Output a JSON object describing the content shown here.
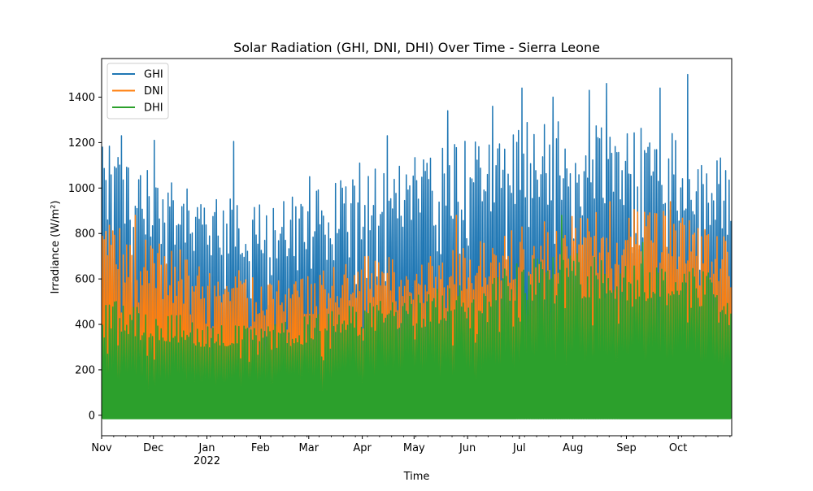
{
  "chart_data": {
    "type": "line",
    "title": "Solar Radiation (GHI, DNI, DHI) Over Time - Sierra Leone",
    "xlabel": "Time",
    "ylabel": "Irradiance (W/m²)",
    "x_range": [
      "2021-11-01",
      "2022-10-31"
    ],
    "ylim": [
      -90,
      1570
    ],
    "yticks": [
      0,
      200,
      400,
      600,
      800,
      1000,
      1200,
      1400
    ],
    "xticks": [
      {
        "date": "2021-11-01",
        "label": "Nov",
        "sublabel": ""
      },
      {
        "date": "2021-12-01",
        "label": "Dec",
        "sublabel": ""
      },
      {
        "date": "2022-01-01",
        "label": "Jan",
        "sublabel": "2022"
      },
      {
        "date": "2022-02-01",
        "label": "Feb",
        "sublabel": ""
      },
      {
        "date": "2022-03-01",
        "label": "Mar",
        "sublabel": ""
      },
      {
        "date": "2022-04-01",
        "label": "Apr",
        "sublabel": ""
      },
      {
        "date": "2022-05-01",
        "label": "May",
        "sublabel": ""
      },
      {
        "date": "2022-06-01",
        "label": "Jun",
        "sublabel": ""
      },
      {
        "date": "2022-07-01",
        "label": "Jul",
        "sublabel": ""
      },
      {
        "date": "2022-08-01",
        "label": "Aug",
        "sublabel": ""
      },
      {
        "date": "2022-09-01",
        "label": "Sep",
        "sublabel": ""
      },
      {
        "date": "2022-10-01",
        "label": "Oct",
        "sublabel": ""
      }
    ],
    "grid": false,
    "legend_position": "upper-left",
    "series": [
      {
        "name": "GHI",
        "color": "#1f77b4",
        "min": 0,
        "typical_daily_max": [
          {
            "date": "2021-11-01",
            "value": 1100
          },
          {
            "date": "2021-12-01",
            "value": 980
          },
          {
            "date": "2022-01-01",
            "value": 880
          },
          {
            "date": "2022-02-01",
            "value": 860
          },
          {
            "date": "2022-03-01",
            "value": 900
          },
          {
            "date": "2022-04-01",
            "value": 980
          },
          {
            "date": "2022-05-01",
            "value": 1050
          },
          {
            "date": "2022-06-01",
            "value": 1100
          },
          {
            "date": "2022-07-01",
            "value": 1180
          },
          {
            "date": "2022-08-01",
            "value": 1200
          },
          {
            "date": "2022-09-01",
            "value": 1180
          },
          {
            "date": "2022-10-01",
            "value": 1150
          },
          {
            "date": "2022-10-31",
            "value": 1000
          }
        ],
        "peaks": [
          {
            "date": "2021-11-01",
            "value": 1180
          },
          {
            "date": "2021-11-12",
            "value": 1230
          },
          {
            "date": "2021-12-01",
            "value": 1210
          },
          {
            "date": "2022-01-16",
            "value": 1205
          },
          {
            "date": "2022-03-01",
            "value": 1050
          },
          {
            "date": "2022-03-30",
            "value": 1110
          },
          {
            "date": "2022-04-15",
            "value": 1230
          },
          {
            "date": "2022-05-20",
            "value": 1340
          },
          {
            "date": "2022-06-15",
            "value": 1360
          },
          {
            "date": "2022-07-02",
            "value": 1440
          },
          {
            "date": "2022-07-20",
            "value": 1400
          },
          {
            "date": "2022-08-10",
            "value": 1430
          },
          {
            "date": "2022-08-20",
            "value": 1460
          },
          {
            "date": "2022-09-20",
            "value": 1440
          },
          {
            "date": "2022-10-06",
            "value": 1500
          }
        ]
      },
      {
        "name": "DNI",
        "color": "#ff7f0e",
        "min": 0,
        "typical_daily_max": [
          {
            "date": "2021-11-01",
            "value": 780
          },
          {
            "date": "2021-12-01",
            "value": 700
          },
          {
            "date": "2022-01-01",
            "value": 620
          },
          {
            "date": "2022-02-01",
            "value": 560
          },
          {
            "date": "2022-03-01",
            "value": 560
          },
          {
            "date": "2022-04-01",
            "value": 650
          },
          {
            "date": "2022-05-01",
            "value": 620
          },
          {
            "date": "2022-06-01",
            "value": 680
          },
          {
            "date": "2022-07-01",
            "value": 760
          },
          {
            "date": "2022-08-01",
            "value": 800
          },
          {
            "date": "2022-09-01",
            "value": 830
          },
          {
            "date": "2022-10-01",
            "value": 820
          },
          {
            "date": "2022-10-31",
            "value": 700
          }
        ],
        "peaks": [
          {
            "date": "2021-11-20",
            "value": 880
          },
          {
            "date": "2022-05-25",
            "value": 880
          },
          {
            "date": "2022-08-22",
            "value": 940
          },
          {
            "date": "2022-09-26",
            "value": 940
          }
        ]
      },
      {
        "name": "DHI",
        "color": "#2ca02c",
        "min": -15,
        "typical_daily_max": [
          {
            "date": "2021-11-01",
            "value": 480
          },
          {
            "date": "2021-12-01",
            "value": 420
          },
          {
            "date": "2022-01-01",
            "value": 380
          },
          {
            "date": "2022-02-01",
            "value": 350
          },
          {
            "date": "2022-03-01",
            "value": 400
          },
          {
            "date": "2022-04-01",
            "value": 450
          },
          {
            "date": "2022-05-01",
            "value": 480
          },
          {
            "date": "2022-06-01",
            "value": 540
          },
          {
            "date": "2022-07-01",
            "value": 640
          },
          {
            "date": "2022-08-01",
            "value": 650
          },
          {
            "date": "2022-09-01",
            "value": 640
          },
          {
            "date": "2022-10-01",
            "value": 600
          },
          {
            "date": "2022-10-31",
            "value": 560
          }
        ],
        "peaks": [
          {
            "date": "2022-07-25",
            "value": 880
          },
          {
            "date": "2022-09-10",
            "value": 760
          }
        ]
      }
    ]
  }
}
